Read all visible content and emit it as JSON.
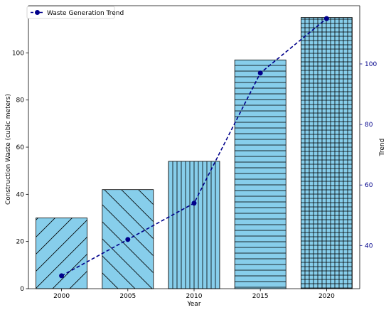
{
  "chart_data": {
    "type": "bar",
    "categories": [
      "2000",
      "2005",
      "2010",
      "2015",
      "2020"
    ],
    "values": [
      30,
      42,
      54,
      97,
      115
    ],
    "xlabel": "Year",
    "ylabel": "Construction Waste (cubic meters)",
    "ylim": [
      0,
      120
    ],
    "yticks": [
      0,
      20,
      40,
      60,
      80,
      100
    ],
    "bar_color": "#87CEEB",
    "bar_edge_color": "#000000",
    "hatches": [
      "diagonal-forward",
      "diagonal-back",
      "vertical",
      "horizontal",
      "grid"
    ],
    "secondary_axis": {
      "label": "Trend",
      "color": "#00008B",
      "ylim": [
        25.75,
        119.25
      ],
      "yticks": [
        40,
        60,
        80,
        100
      ]
    },
    "series": [
      {
        "name": "Waste Generation Trend",
        "type": "line",
        "axis": "secondary",
        "style": "dashed",
        "marker": "circle",
        "color": "#00008B",
        "values": [
          30,
          42,
          54,
          97,
          115
        ]
      }
    ],
    "legend": {
      "placement": "top-left"
    },
    "grid": false
  }
}
